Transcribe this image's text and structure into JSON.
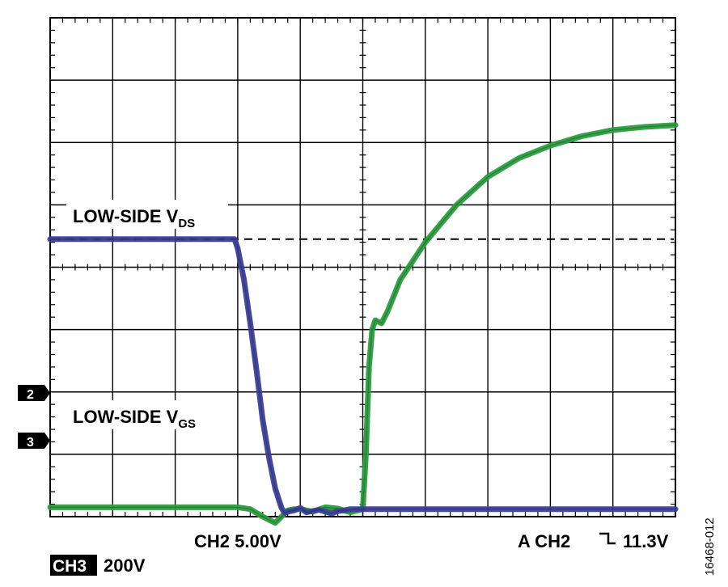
{
  "chart_data": {
    "type": "line",
    "title": "",
    "grid": true,
    "x_divisions": 10,
    "y_divisions": 8,
    "x_unit": "div",
    "y_unit": "div",
    "xlim": [
      0,
      10
    ],
    "ylim": [
      0,
      8
    ],
    "trigger_level_y": 4.45,
    "series": [
      {
        "name": "LOW-SIDE VDS",
        "color": "#3a3f9a",
        "x": [
          0,
          2.95,
          3.0,
          3.1,
          3.2,
          3.3,
          3.4,
          3.5,
          3.6,
          3.7,
          3.75,
          3.8,
          3.9,
          4.0,
          4.1,
          4.3,
          4.5,
          4.6,
          4.7,
          4.8,
          5.0,
          10
        ],
        "y": [
          4.45,
          4.45,
          4.3,
          3.8,
          3.1,
          2.35,
          1.55,
          0.95,
          0.45,
          0.14,
          0.06,
          0.08,
          0.1,
          0.14,
          0.07,
          0.11,
          0.05,
          0.09,
          0.1,
          0.12,
          0.12,
          0.12
        ]
      },
      {
        "name": "LOW-SIDE VGS",
        "color": "#2a9d3e",
        "x": [
          0,
          3.0,
          3.2,
          3.4,
          3.6,
          3.8,
          3.9,
          4.0,
          4.2,
          4.4,
          4.6,
          4.8,
          5.0,
          5.05,
          5.1,
          5.15,
          5.2,
          5.3,
          5.4,
          5.6,
          6.0,
          6.5,
          7.0,
          7.5,
          8.0,
          8.5,
          9.0,
          9.5,
          10
        ],
        "y": [
          0.15,
          0.15,
          0.12,
          0.0,
          -0.1,
          0.1,
          0.12,
          0.12,
          0.08,
          0.15,
          0.13,
          0.07,
          0.12,
          1.0,
          2.4,
          3.0,
          3.15,
          3.1,
          3.3,
          3.8,
          4.4,
          5.0,
          5.45,
          5.75,
          5.95,
          6.1,
          6.2,
          6.25,
          6.28
        ]
      }
    ],
    "labels": {
      "vds_label": "LOW-SIDE V",
      "vds_sub": "DS",
      "vgs_label": "LOW-SIDE V",
      "vgs_sub": "GS",
      "ch2_scale": "CH2 5.00V",
      "trigger": "A  CH2",
      "trigger_value": "11.3V",
      "ch3_badge": "CH3",
      "ch3_scale": "200V",
      "marker_2": "2",
      "marker_3": "3",
      "figure_id": "16468-012"
    }
  }
}
